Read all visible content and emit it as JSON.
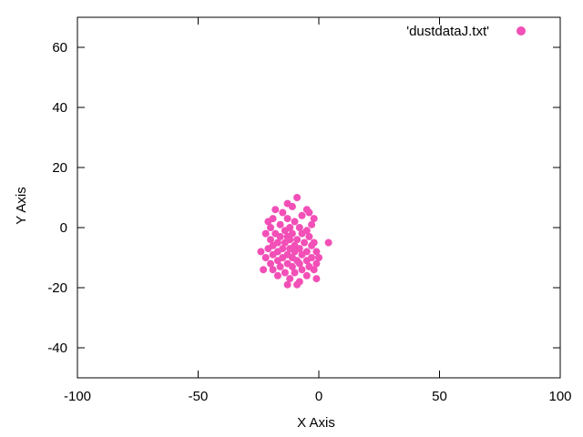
{
  "chart_data": {
    "type": "scatter",
    "xlabel": "X Axis",
    "ylabel": "Y Axis",
    "xlim": [
      -100,
      100
    ],
    "ylim": [
      -50,
      70
    ],
    "xticks": [
      -100,
      -50,
      0,
      50,
      100
    ],
    "yticks": [
      -40,
      -20,
      0,
      20,
      40,
      60
    ],
    "grid": false,
    "legend_position": "top-right",
    "series": [
      {
        "name": "'dustdataJ.txt'",
        "color": "#f24fb7",
        "marker": "filled-circle",
        "points": [
          [
            -9,
            10
          ],
          [
            -13,
            8
          ],
          [
            -11,
            7
          ],
          [
            -18,
            6
          ],
          [
            -5,
            6
          ],
          [
            -4,
            5
          ],
          [
            -15,
            5
          ],
          [
            -7,
            4
          ],
          [
            -19,
            3
          ],
          [
            -13,
            3
          ],
          [
            -2,
            3
          ],
          [
            -10,
            2
          ],
          [
            -21,
            2
          ],
          [
            -16,
            1
          ],
          [
            -3,
            1
          ],
          [
            -20,
            0
          ],
          [
            -12,
            0
          ],
          [
            -8,
            0
          ],
          [
            -14,
            -1
          ],
          [
            -5,
            -1
          ],
          [
            -18,
            -2
          ],
          [
            -22,
            -2
          ],
          [
            -11,
            -2
          ],
          [
            -7,
            -2
          ],
          [
            -16,
            -3
          ],
          [
            -13,
            -3
          ],
          [
            -4,
            -3
          ],
          [
            -20,
            -4
          ],
          [
            -9,
            -4
          ],
          [
            -12,
            -4
          ],
          [
            -17,
            -5
          ],
          [
            -6,
            -5
          ],
          [
            -2,
            -5
          ],
          [
            -14,
            -5
          ],
          [
            4,
            -5
          ],
          [
            -19,
            -6
          ],
          [
            -10,
            -6
          ],
          [
            -3,
            -6
          ],
          [
            -15,
            -7
          ],
          [
            -8,
            -7
          ],
          [
            -12,
            -7
          ],
          [
            -21,
            -7
          ],
          [
            -5,
            -8
          ],
          [
            -17,
            -8
          ],
          [
            -24,
            -8
          ],
          [
            -1,
            -8
          ],
          [
            -10,
            -8
          ],
          [
            -13,
            -9
          ],
          [
            -19,
            -9
          ],
          [
            -7,
            -9
          ],
          [
            -15,
            -10
          ],
          [
            -3,
            -10
          ],
          [
            -11,
            -10
          ],
          [
            -22,
            -10
          ],
          [
            0,
            -10
          ],
          [
            -9,
            -11
          ],
          [
            -17,
            -11
          ],
          [
            -5,
            -11
          ],
          [
            -13,
            -12
          ],
          [
            -20,
            -12
          ],
          [
            -1,
            -12
          ],
          [
            -8,
            -12
          ],
          [
            -16,
            -13
          ],
          [
            -11,
            -13
          ],
          [
            -4,
            -13
          ],
          [
            -19,
            -14
          ],
          [
            -7,
            -14
          ],
          [
            -2,
            -14
          ],
          [
            -14,
            -15
          ],
          [
            -10,
            -15
          ],
          [
            -23,
            -14
          ],
          [
            -5,
            -16
          ],
          [
            -17,
            -16
          ],
          [
            -12,
            -17
          ],
          [
            -1,
            -17
          ],
          [
            -8,
            -18
          ],
          [
            -13,
            -19
          ],
          [
            -9,
            -19
          ]
        ]
      }
    ]
  }
}
